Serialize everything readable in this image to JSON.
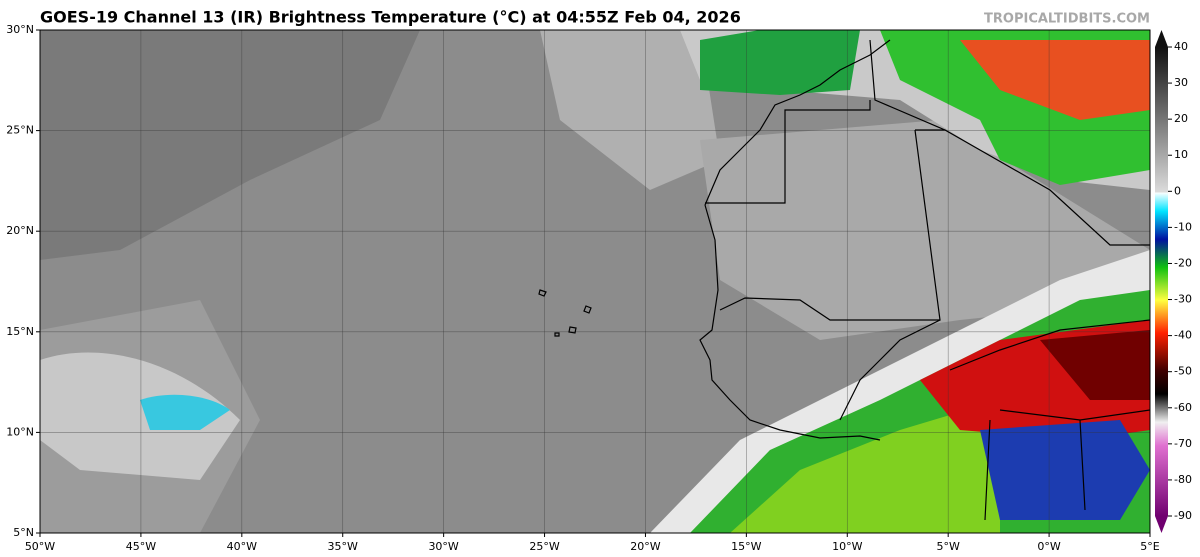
{
  "header": {
    "title": "GOES-19 Channel 13 (IR) Brightness Temperature (°C) at 04:55Z Feb 04, 2026",
    "source": "TROPICALTIDBITS.COM"
  },
  "map": {
    "latitudes": [
      {
        "value": 30,
        "label": "30°N"
      },
      {
        "value": 25,
        "label": "25°N"
      },
      {
        "value": 20,
        "label": "20°N"
      },
      {
        "value": 15,
        "label": "15°N"
      },
      {
        "value": 10,
        "label": "10°N"
      },
      {
        "value": 5,
        "label": "5°N"
      }
    ],
    "longitudes": [
      {
        "value": -50,
        "label": "50°W"
      },
      {
        "value": -45,
        "label": "45°W"
      },
      {
        "value": -40,
        "label": "40°W"
      },
      {
        "value": -35,
        "label": "35°W"
      },
      {
        "value": -30,
        "label": "30°W"
      },
      {
        "value": -25,
        "label": "25°W"
      },
      {
        "value": -20,
        "label": "20°W"
      },
      {
        "value": -15,
        "label": "15°W"
      },
      {
        "value": -10,
        "label": "10°W"
      },
      {
        "value": -5,
        "label": "5°W"
      },
      {
        "value": 0,
        "label": "0°W"
      },
      {
        "value": 5,
        "label": "5°E"
      }
    ]
  },
  "colorbar": {
    "ticks": [
      40,
      30,
      20,
      10,
      0,
      -10,
      -20,
      -30,
      -40,
      -50,
      -60,
      -70,
      -80,
      -90
    ]
  }
}
